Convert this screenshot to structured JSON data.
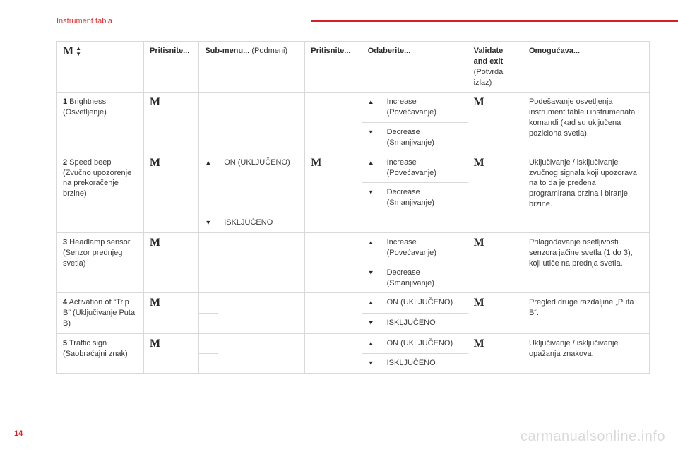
{
  "page": {
    "title": "Instrument tabla",
    "number": "14",
    "watermark": "carmanualsonline.info"
  },
  "glyph": {
    "M": "M",
    "up": "▲",
    "down": "▼"
  },
  "head": {
    "press1": "Pritisnite...",
    "submenu_b": "Sub-menu...",
    "submenu_r": " (Podmeni)",
    "press2": "Pritisnite...",
    "select": "Odaberite...",
    "validate_b": "Validate and exit",
    "validate_r": " (Potvrda i izlaz)",
    "enables": "Omogućava..."
  },
  "r1": {
    "num": "1",
    "label_b": " Brightness",
    "label_r": " (Osvetljenje)",
    "inc": "Increase (Povećavanje)",
    "dec": "Decrease (Smanjivanje)",
    "desc": "Podešavanje osvetljenja instrument table i instrumenata i komandi (kad su uključena poziciona svetla)."
  },
  "r2": {
    "num": "2",
    "label_b": " Speed beep",
    "label_r": " (Zvučno upozorenje na prekoračenje brzine)",
    "sub_on": "ON (UKLJUČENO)",
    "sub_off": "ISKLJUČENO",
    "inc": "Increase (Povećavanje)",
    "dec": "Decrease (Smanjivanje)",
    "desc": "Uključivanje / isključivanje zvučnog signala koji upozorava na to da je pređena programirana brzina i biranje brzine."
  },
  "r3": {
    "num": "3",
    "label_b": " Headlamp sensor",
    "label_r": " (Senzor prednjeg svetla)",
    "inc": "Increase (Povećavanje)",
    "dec": "Decrease (Smanjivanje)",
    "desc": "Prilagođavanje osetljivosti senzora jačine svetla (1 do 3), koji utiče na prednja svetla."
  },
  "r4": {
    "num": "4",
    "label_b": " Activation of “Trip B”",
    "label_r": " (Uključivanje Puta B)",
    "on": "ON (UKLJUČENO)",
    "off": "ISKLJUČENO",
    "desc": "Pregled druge razdaljine „Puta B“."
  },
  "r5": {
    "num": "5",
    "label_b": " Traffic sign",
    "label_r": " (Saobraćajni znak)",
    "on": "ON (UKLJUČENO)",
    "off": "ISKLJUČENO",
    "desc": "Uključivanje / isključivanje opažanja znakova."
  }
}
